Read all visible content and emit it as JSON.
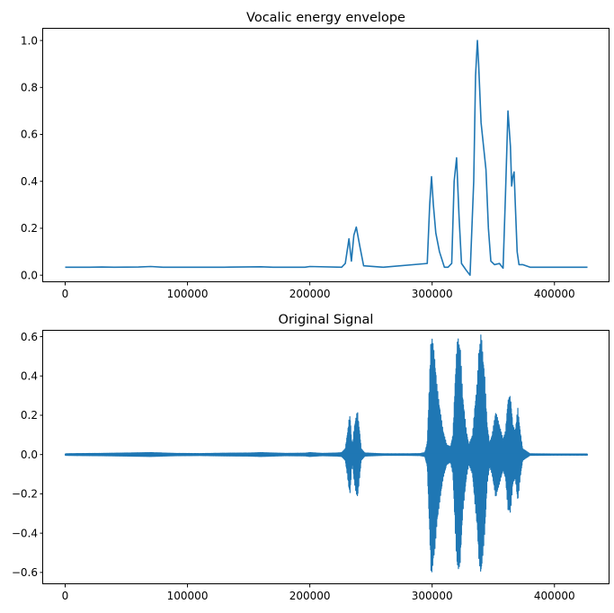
{
  "chart_data": [
    {
      "type": "line",
      "title": "Vocalic energy envelope",
      "xlabel": "",
      "ylabel": "",
      "xlim": [
        -18000,
        445000
      ],
      "ylim": [
        -0.03,
        1.05
      ],
      "xticks": [
        0,
        100000,
        200000,
        300000,
        400000
      ],
      "xtick_labels": [
        "0",
        "100000",
        "200000",
        "300000",
        "400000"
      ],
      "yticks": [
        0.0,
        0.2,
        0.4,
        0.6,
        0.8,
        1.0
      ],
      "ytick_labels": [
        "0.0",
        "0.2",
        "0.4",
        "0.6",
        "0.8",
        "1.0"
      ],
      "series": [
        {
          "name": "envelope",
          "color": "#1f77b4",
          "x": [
            0,
            20000,
            30000,
            40000,
            60000,
            70000,
            80000,
            100000,
            130000,
            160000,
            170000,
            196000,
            200000,
            226000,
            229000,
            232000,
            234000,
            236000,
            238000,
            241000,
            244000,
            260000,
            296000,
            298000,
            299500,
            301000,
            303000,
            306000,
            310000,
            313000,
            316000,
            318000,
            320000,
            322000,
            324000,
            328000,
            331000,
            334000,
            335500,
            337000,
            338000,
            340000,
            344000,
            346000,
            348000,
            351000,
            355000,
            358000,
            360000,
            362000,
            364000,
            365000,
            366000,
            367000,
            368000,
            369500,
            371000,
            374000,
            380000,
            400000,
            427000
          ],
          "y": [
            0.034,
            0.034,
            0.035,
            0.034,
            0.035,
            0.037,
            0.034,
            0.034,
            0.034,
            0.036,
            0.034,
            0.034,
            0.037,
            0.034,
            0.05,
            0.155,
            0.06,
            0.17,
            0.205,
            0.12,
            0.04,
            0.034,
            0.05,
            0.3,
            0.42,
            0.3,
            0.18,
            0.1,
            0.034,
            0.034,
            0.05,
            0.4,
            0.5,
            0.25,
            0.05,
            0.02,
            0.0,
            0.4,
            0.85,
            1.0,
            0.9,
            0.65,
            0.45,
            0.2,
            0.06,
            0.045,
            0.05,
            0.03,
            0.35,
            0.7,
            0.55,
            0.38,
            0.42,
            0.44,
            0.3,
            0.1,
            0.045,
            0.045,
            0.034,
            0.034,
            0.034
          ]
        }
      ]
    },
    {
      "type": "line",
      "title": "Original Signal",
      "xlabel": "",
      "ylabel": "",
      "xlim": [
        -18000,
        445000
      ],
      "ylim": [
        -0.66,
        0.63
      ],
      "xticks": [
        0,
        100000,
        200000,
        300000,
        400000
      ],
      "xtick_labels": [
        "0",
        "100000",
        "200000",
        "300000",
        "400000"
      ],
      "yticks": [
        -0.6,
        -0.4,
        -0.2,
        0.0,
        0.2,
        0.4,
        0.6
      ],
      "ytick_labels": [
        "−0.6",
        "−0.4",
        "−0.2",
        "0.0",
        "0.2",
        "0.4",
        "0.6"
      ],
      "series": [
        {
          "name": "signal",
          "color": "#1f77b4",
          "x": [
            0,
            10000,
            30000,
            50000,
            70000,
            90000,
            110000,
            130000,
            150000,
            160000,
            180000,
            196000,
            200000,
            210000,
            222000,
            226000,
            229000,
            231000,
            232000,
            233000,
            234000,
            235000,
            236000,
            237000,
            238000,
            239000,
            240000,
            241000,
            242000,
            245000,
            260000,
            280000,
            290000,
            294000,
            296000,
            298000,
            299000,
            300000,
            302000,
            304000,
            306000,
            309000,
            312000,
            315000,
            317000,
            319000,
            320000,
            321000,
            323000,
            325000,
            328000,
            330000,
            333000,
            335000,
            337000,
            338000,
            340000,
            343000,
            345000,
            347000,
            349000,
            352000,
            355000,
            358000,
            360000,
            362000,
            364000,
            366000,
            368000,
            370000,
            372000,
            374000,
            380000,
            400000,
            427000
          ],
          "amp": [
            0.004,
            0.005,
            0.006,
            0.008,
            0.01,
            0.006,
            0.005,
            0.007,
            0.008,
            0.01,
            0.006,
            0.007,
            0.01,
            0.006,
            0.008,
            0.01,
            0.03,
            0.12,
            0.175,
            0.2,
            0.08,
            0.05,
            0.12,
            0.165,
            0.2,
            0.22,
            0.16,
            0.1,
            0.03,
            0.008,
            0.004,
            0.004,
            0.005,
            0.01,
            0.06,
            0.4,
            0.59,
            0.6,
            0.5,
            0.35,
            0.25,
            0.12,
            0.05,
            0.04,
            0.1,
            0.4,
            0.53,
            0.6,
            0.55,
            0.3,
            0.12,
            0.05,
            0.1,
            0.25,
            0.38,
            0.52,
            0.62,
            0.4,
            0.15,
            0.06,
            0.1,
            0.22,
            0.15,
            0.08,
            0.12,
            0.28,
            0.3,
            0.15,
            0.12,
            0.24,
            0.12,
            0.03,
            0.004,
            0.003,
            0.003
          ]
        }
      ]
    }
  ]
}
